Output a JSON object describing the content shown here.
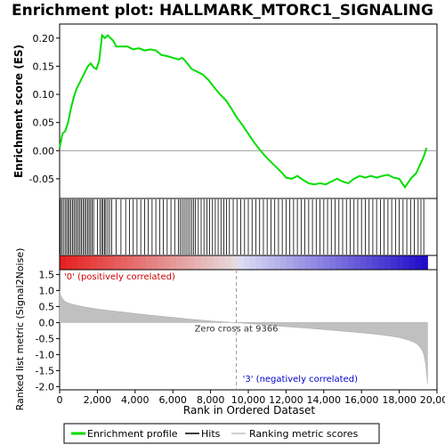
{
  "chart_data": {
    "type": "line",
    "title": "Enrichment plot: HALLMARK_MTORC1_SIGNALING",
    "top_panel": {
      "ylabel": "Enrichment score (ES)",
      "ylim": [
        -0.085,
        0.225
      ],
      "yticks": [
        -0.05,
        0.0,
        0.05,
        0.1,
        0.15,
        0.2
      ],
      "ytick_labels": [
        "-0.05",
        "0.00",
        "0.05",
        "0.10",
        "0.15",
        "0.20"
      ],
      "series": [
        {
          "name": "Enrichment profile",
          "color": "#00dd00",
          "x": [
            0,
            150,
            300,
            450,
            600,
            750,
            900,
            1050,
            1200,
            1350,
            1500,
            1650,
            1800,
            1950,
            2100,
            2250,
            2400,
            2550,
            2700,
            2850,
            3000,
            3300,
            3600,
            3900,
            4200,
            4500,
            4800,
            5100,
            5400,
            5700,
            6000,
            6300,
            6500,
            6700,
            7000,
            7300,
            7600,
            7900,
            8200,
            8500,
            8800,
            9100,
            9366,
            9700,
            10000,
            10300,
            10600,
            10900,
            11200,
            11500,
            11800,
            12000,
            12300,
            12600,
            12900,
            13200,
            13500,
            13800,
            14100,
            14400,
            14700,
            15000,
            15300,
            15600,
            15900,
            16200,
            16500,
            16800,
            17100,
            17400,
            17700,
            18000,
            18300,
            18600,
            18900,
            19100,
            19300,
            19450
          ],
          "y": [
            0.005,
            0.03,
            0.035,
            0.05,
            0.075,
            0.095,
            0.11,
            0.12,
            0.13,
            0.14,
            0.15,
            0.155,
            0.148,
            0.145,
            0.16,
            0.205,
            0.2,
            0.205,
            0.2,
            0.195,
            0.185,
            0.185,
            0.185,
            0.18,
            0.182,
            0.178,
            0.18,
            0.178,
            0.17,
            0.168,
            0.165,
            0.162,
            0.165,
            0.158,
            0.145,
            0.14,
            0.135,
            0.125,
            0.112,
            0.1,
            0.09,
            0.075,
            0.06,
            0.045,
            0.03,
            0.015,
            0.002,
            -0.01,
            -0.02,
            -0.03,
            -0.04,
            -0.048,
            -0.05,
            -0.045,
            -0.052,
            -0.058,
            -0.06,
            -0.058,
            -0.06,
            -0.055,
            -0.05,
            -0.055,
            -0.058,
            -0.05,
            -0.045,
            -0.048,
            -0.045,
            -0.048,
            -0.045,
            -0.043,
            -0.048,
            -0.05,
            -0.065,
            -0.05,
            -0.04,
            -0.025,
            -0.01,
            0.005
          ]
        }
      ]
    },
    "hits_panel": {
      "hit_positions": [
        40,
        120,
        200,
        290,
        370,
        450,
        520,
        600,
        680,
        760,
        840,
        920,
        1000,
        1080,
        1160,
        1240,
        1320,
        1400,
        1480,
        1560,
        1640,
        1720,
        1800,
        2000,
        2150,
        2230,
        2300,
        2380,
        2450,
        2550,
        2650,
        2760,
        3000,
        3250,
        3500,
        3700,
        3900,
        4100,
        4300,
        4500,
        4700,
        4900,
        5100,
        5300,
        5500,
        5700,
        5900,
        6100,
        6300,
        6400,
        6500,
        6600,
        6700,
        6800,
        6900,
        7000,
        7100,
        7200,
        7350,
        7500,
        7650,
        7800,
        7950,
        8100,
        8250,
        8400,
        8550,
        8700,
        8850,
        9000,
        9200,
        9400,
        9600,
        9800,
        10000,
        10200,
        10400,
        10600,
        10800,
        11000,
        11200,
        11400,
        11600,
        11800,
        12000,
        12200,
        12400,
        12600,
        12800,
        13000,
        13200,
        13400,
        13600,
        13800,
        14000,
        14200,
        14400,
        14600,
        14800,
        15000,
        15200,
        15400,
        15600,
        15800,
        16000,
        16200,
        16400,
        16600,
        16800,
        17000,
        17200,
        17400,
        17600,
        17800,
        18000,
        18200,
        18400,
        18600,
        18800,
        19000,
        19150,
        19300
      ]
    },
    "bottom_panel": {
      "ylabel": "Ranked list metric (Signal2Noise)",
      "xlabel": "Rank in Ordered Dataset",
      "ylim": [
        -2.1,
        1.65
      ],
      "yticks": [
        -2.0,
        -1.5,
        -1.0,
        -0.5,
        0.0,
        0.5,
        1.0,
        1.5
      ],
      "ytick_labels": [
        "-2.0",
        "-1.5",
        "-1.0",
        "-0.5",
        "0.0",
        "0.5",
        "1.0",
        "1.5"
      ],
      "metric_x": [
        0,
        50,
        150,
        300,
        500,
        800,
        1200,
        2000,
        3000,
        4000,
        5000,
        6000,
        7000,
        8000,
        9000,
        9366,
        10000,
        11000,
        12000,
        13000,
        14000,
        15000,
        16000,
        17000,
        17500,
        18000,
        18500,
        18800,
        19000,
        19200,
        19300,
        19400,
        19450,
        19500
      ],
      "metric_y": [
        1.0,
        0.85,
        0.75,
        0.65,
        0.6,
        0.55,
        0.5,
        0.42,
        0.35,
        0.28,
        0.22,
        0.16,
        0.1,
        0.05,
        0.01,
        0.0,
        -0.03,
        -0.08,
        -0.13,
        -0.17,
        -0.22,
        -0.27,
        -0.32,
        -0.38,
        -0.42,
        -0.47,
        -0.55,
        -0.62,
        -0.7,
        -0.85,
        -1.0,
        -1.3,
        -1.6,
        -1.9
      ],
      "zero_cross_label": "Zero cross at 9366",
      "zero_cross_x": 9366,
      "pos_label": "'0' (positively correlated)",
      "neg_label": "'3' (negatively correlated)"
    },
    "xlim": [
      0,
      20000
    ],
    "xticks": [
      0,
      2000,
      4000,
      6000,
      8000,
      10000,
      12000,
      14000,
      16000,
      18000,
      20000
    ],
    "xtick_labels": [
      "0",
      "2,000",
      "4,000",
      "6,000",
      "8,000",
      "10,000",
      "12,000",
      "14,000",
      "16,000",
      "18,000",
      "20,000"
    ],
    "n_ranked": 19500,
    "legend": {
      "placement": "bottom",
      "entries": [
        {
          "label": "Enrichment profile",
          "color": "#00dd00"
        },
        {
          "label": "Hits",
          "color": "#000000"
        },
        {
          "label": "Ranking metric scores",
          "color": "#c0c0c0"
        }
      ]
    }
  }
}
